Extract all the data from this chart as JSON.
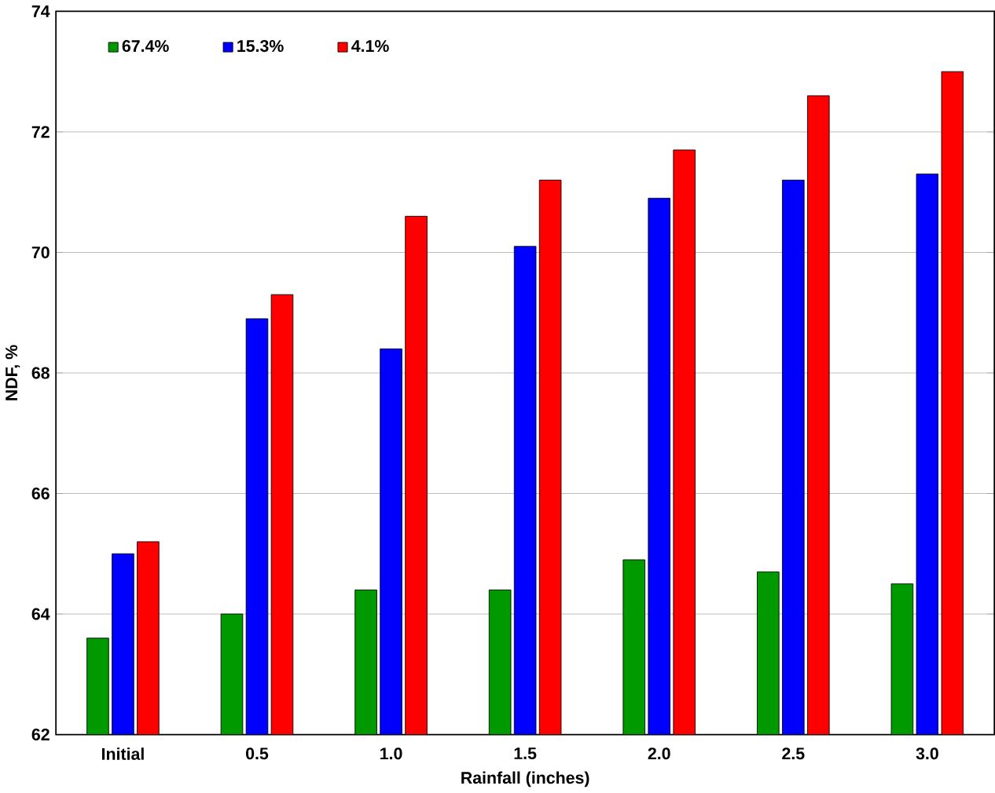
{
  "chart_data": {
    "type": "bar",
    "xlabel": "Rainfall (inches)",
    "ylabel": "NDF, %",
    "categories": [
      "Initial",
      "0.5",
      "1.0",
      "1.5",
      "2.0",
      "2.5",
      "3.0"
    ],
    "series": [
      {
        "name": "67.4%",
        "color": "#009900",
        "values": [
          63.6,
          64.0,
          64.4,
          64.4,
          64.9,
          64.7,
          64.5
        ]
      },
      {
        "name": "15.3%",
        "color": "#0000ff",
        "values": [
          65.0,
          68.9,
          68.4,
          70.1,
          70.9,
          71.2,
          71.3
        ]
      },
      {
        "name": "4.1%",
        "color": "#ff0000",
        "values": [
          65.2,
          69.3,
          70.6,
          71.2,
          71.7,
          72.6,
          73.0
        ]
      }
    ],
    "ylim": [
      62,
      74
    ],
    "yticks": [
      62,
      64,
      66,
      68,
      70,
      72,
      74
    ],
    "grid": "y",
    "legend": "top left"
  }
}
